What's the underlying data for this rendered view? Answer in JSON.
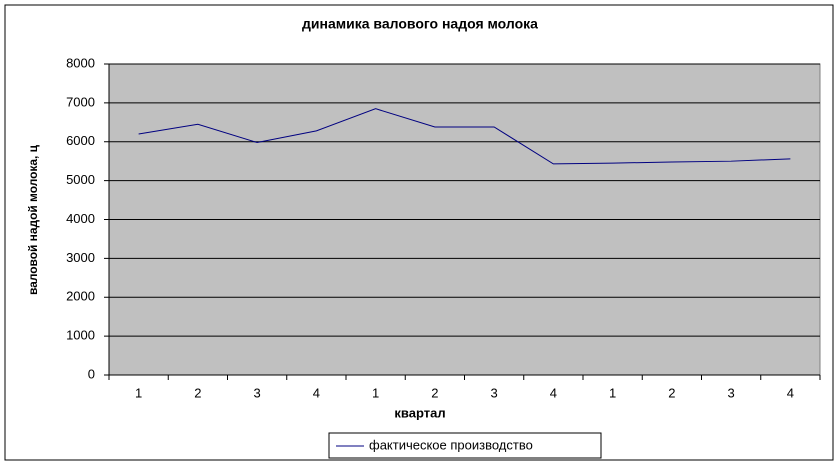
{
  "chart_data": {
    "type": "line",
    "title": "динамика валового надоя молока",
    "x_label": "квартал",
    "y_label": "валовой надой молока, ц",
    "categories": [
      "1",
      "2",
      "3",
      "4",
      "1",
      "2",
      "3",
      "4",
      "1",
      "2",
      "3",
      "4"
    ],
    "series": [
      {
        "name": "фактическое производство",
        "color": "#000080",
        "values": [
          6200,
          6450,
          5980,
          6280,
          6850,
          6380,
          6380,
          5430,
          5450,
          5480,
          5500,
          5560
        ]
      }
    ],
    "ylim": [
      0,
      8000
    ],
    "yticks": [
      0,
      1000,
      2000,
      3000,
      4000,
      5000,
      6000,
      7000,
      8000
    ],
    "grid": true,
    "plot_background": "#c0c0c0",
    "legend": "bottom"
  }
}
